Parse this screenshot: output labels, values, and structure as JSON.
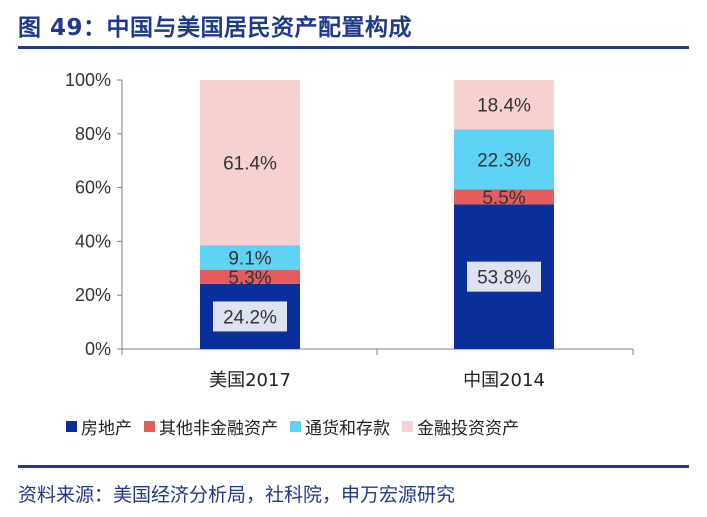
{
  "title": "图 49：中国与美国居民资产配置构成",
  "source": "资料来源：美国经济分析局，社科院，申万宏源研究",
  "colors": {
    "title": "#1f3a8a",
    "axis": "#7f7f7f",
    "label_bg": "#dde3f0"
  },
  "chart_data": {
    "type": "bar",
    "stacked": true,
    "categories": [
      "美国2017",
      "中国2014"
    ],
    "series": [
      {
        "name": "房地产",
        "values": [
          24.2,
          53.8
        ],
        "labels": [
          "24.2%",
          "53.8%"
        ],
        "color": "#0a2f9a"
      },
      {
        "name": "其他非金融资产",
        "values": [
          5.3,
          5.5
        ],
        "labels": [
          "5.3%",
          "5.5%"
        ],
        "color": "#e45c5c"
      },
      {
        "name": "通货和存款",
        "values": [
          9.1,
          22.3
        ],
        "labels": [
          "9.1%",
          "22.3%"
        ],
        "color": "#5fd3f5"
      },
      {
        "name": "金融投资资产",
        "values": [
          61.4,
          18.4
        ],
        "labels": [
          "61.4%",
          "18.4%"
        ],
        "color": "#f7d1d1"
      }
    ],
    "ylim": [
      0,
      100
    ],
    "yticks": [
      0,
      20,
      40,
      60,
      80,
      100
    ],
    "ytick_labels": [
      "0%",
      "20%",
      "40%",
      "60%",
      "80%",
      "100%"
    ],
    "grid": false,
    "legend": "bottom"
  }
}
